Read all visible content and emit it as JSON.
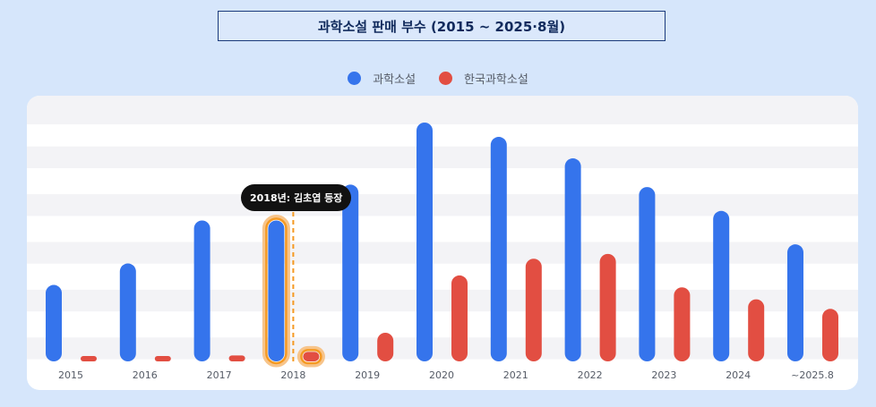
{
  "title": "과학소설 판매 부수 (2015 ~ 2025·8월)",
  "legend": [
    {
      "label": "과학소설",
      "color": "#3574ec"
    },
    {
      "label": "한국과학소설",
      "color": "#e24e42"
    }
  ],
  "tooltip": {
    "text": "2018년: 김초엽 등장",
    "category": "2018"
  },
  "colors": {
    "highlight_outline": "#f59a23",
    "marker_line": "#f59a23"
  },
  "chart_data": {
    "type": "bar",
    "categories": [
      "2015",
      "2016",
      "2017",
      "2018",
      "2019",
      "2020",
      "2021",
      "2022",
      "2023",
      "2024",
      "~2025.8"
    ],
    "series": [
      {
        "name": "과학소설",
        "values": [
          32,
          41,
          59,
          59,
          74,
          100,
          94,
          85,
          73,
          63,
          49
        ]
      },
      {
        "name": "한국과학소설",
        "values": [
          1.5,
          2,
          2.5,
          4,
          12,
          36,
          43,
          45,
          31,
          26,
          22
        ]
      }
    ],
    "ylim": [
      0,
      100
    ],
    "grid": "striped",
    "legend_position": "top-center",
    "highlight": "2018"
  }
}
